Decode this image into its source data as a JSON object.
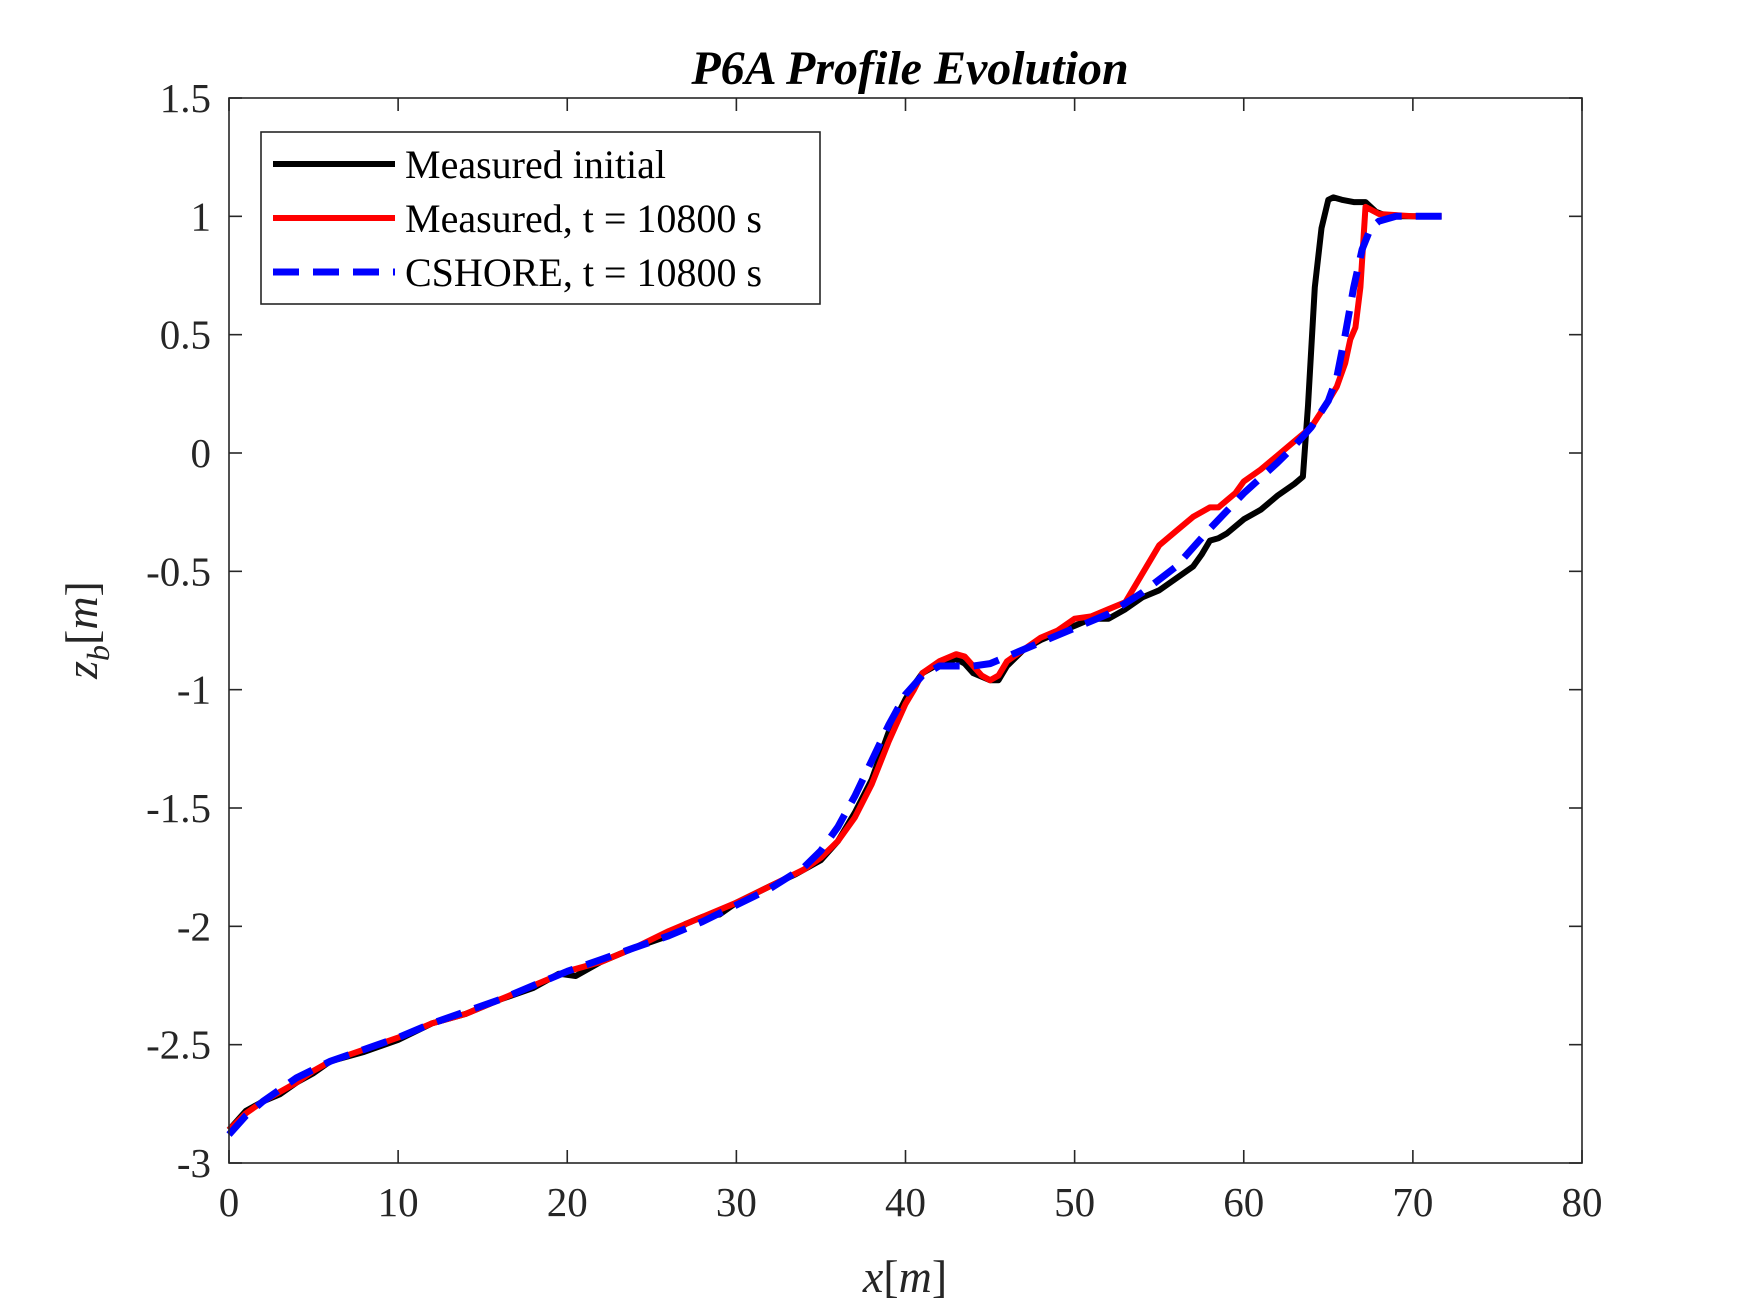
{
  "chart_data": {
    "type": "line",
    "title": "P6A Profile Evolution",
    "xlabel": "x[m]",
    "ylabel": "z_b[m]",
    "xlim": [
      0,
      80
    ],
    "ylim": [
      -3,
      1.5
    ],
    "xticks": [
      0,
      10,
      20,
      30,
      40,
      50,
      60,
      70,
      80
    ],
    "yticks": [
      -3,
      -2.5,
      -2,
      -1.5,
      -1,
      -0.5,
      0,
      0.5,
      1,
      1.5
    ],
    "xtick_labels": [
      "0",
      "10",
      "20",
      "30",
      "40",
      "50",
      "60",
      "70",
      "80"
    ],
    "ytick_labels": [
      "-3",
      "-2.5",
      "-2",
      "-1.5",
      "-1",
      "-0.5",
      "0",
      "0.5",
      "1",
      "1.5"
    ],
    "grid": false,
    "legend_position": "top-left",
    "series": [
      {
        "name": "Measured initial",
        "color": "#000000",
        "style": "solid",
        "x": [
          0,
          1,
          2,
          3,
          4,
          5,
          6,
          8,
          10,
          12,
          14,
          16,
          18,
          19.5,
          20.5,
          22,
          24,
          26,
          27,
          28,
          29,
          30,
          32,
          33.5,
          35,
          36,
          37,
          38,
          39,
          40,
          40.5,
          41,
          42,
          43,
          43.5,
          44,
          45,
          45.5,
          46,
          47,
          48,
          49,
          50,
          51,
          52,
          53,
          54,
          55,
          56,
          57,
          57.5,
          58,
          58.5,
          59,
          60,
          61,
          62,
          63,
          63.5,
          63.8,
          64.2,
          64.6,
          65,
          65.3,
          65.8,
          66.5,
          67.2,
          67.8,
          68.5,
          70,
          71.7
        ],
        "y": [
          -2.86,
          -2.78,
          -2.74,
          -2.71,
          -2.66,
          -2.62,
          -2.57,
          -2.53,
          -2.48,
          -2.41,
          -2.37,
          -2.31,
          -2.26,
          -2.2,
          -2.21,
          -2.15,
          -2.09,
          -2.04,
          -1.99,
          -1.96,
          -1.95,
          -1.9,
          -1.83,
          -1.78,
          -1.72,
          -1.64,
          -1.52,
          -1.38,
          -1.18,
          -1.04,
          -0.98,
          -0.93,
          -0.89,
          -0.87,
          -0.89,
          -0.93,
          -0.96,
          -0.96,
          -0.9,
          -0.83,
          -0.79,
          -0.76,
          -0.73,
          -0.7,
          -0.7,
          -0.66,
          -0.61,
          -0.58,
          -0.53,
          -0.48,
          -0.43,
          -0.37,
          -0.36,
          -0.34,
          -0.28,
          -0.24,
          -0.18,
          -0.13,
          -0.1,
          0.2,
          0.7,
          0.95,
          1.07,
          1.08,
          1.07,
          1.06,
          1.06,
          1.02,
          1.0,
          1.0,
          1.0
        ]
      },
      {
        "name": "Measured, t = 10800 s",
        "color": "#ff0000",
        "style": "solid",
        "x": [
          0,
          1,
          2,
          3,
          4,
          5,
          6,
          8,
          10,
          12,
          14,
          16,
          18,
          20,
          22,
          24,
          26,
          28,
          30,
          32,
          34,
          35,
          36,
          37,
          38,
          39,
          40,
          40.5,
          41,
          42,
          43,
          43.5,
          44,
          44.5,
          45,
          45.5,
          46,
          47,
          48,
          49,
          50,
          51,
          52,
          53,
          54,
          55,
          56,
          57,
          58,
          58.5,
          59,
          59.5,
          60,
          61,
          62,
          63,
          64,
          65,
          65.5,
          66,
          66.3,
          66.6,
          66.9,
          67.2,
          68,
          70,
          71.7
        ],
        "y": [
          -2.86,
          -2.79,
          -2.74,
          -2.7,
          -2.66,
          -2.61,
          -2.57,
          -2.52,
          -2.47,
          -2.41,
          -2.37,
          -2.31,
          -2.25,
          -2.19,
          -2.15,
          -2.09,
          -2.02,
          -1.96,
          -1.9,
          -1.83,
          -1.76,
          -1.71,
          -1.64,
          -1.54,
          -1.4,
          -1.22,
          -1.06,
          -1.0,
          -0.93,
          -0.88,
          -0.85,
          -0.86,
          -0.9,
          -0.94,
          -0.96,
          -0.94,
          -0.88,
          -0.83,
          -0.78,
          -0.75,
          -0.7,
          -0.69,
          -0.66,
          -0.63,
          -0.51,
          -0.39,
          -0.33,
          -0.27,
          -0.23,
          -0.23,
          -0.2,
          -0.17,
          -0.12,
          -0.07,
          -0.01,
          0.05,
          0.11,
          0.22,
          0.28,
          0.38,
          0.48,
          0.53,
          0.7,
          1.04,
          1.01,
          1.0,
          1.0
        ]
      },
      {
        "name": "CSHORE, t = 10800 s",
        "color": "#0000ff",
        "style": "dashed",
        "x": [
          0,
          1,
          2,
          4,
          6,
          8,
          10,
          12,
          14,
          16,
          18,
          20,
          22,
          24,
          26,
          28,
          30,
          32,
          34,
          35,
          36,
          37,
          38,
          39,
          40,
          41,
          42,
          43,
          44,
          45,
          46,
          48,
          50,
          52,
          54,
          56,
          58,
          60,
          62,
          63,
          64,
          65,
          65.5,
          66,
          66.5,
          67,
          67.5,
          68,
          69,
          70,
          71.7
        ],
        "y": [
          -2.88,
          -2.8,
          -2.74,
          -2.64,
          -2.57,
          -2.52,
          -2.47,
          -2.41,
          -2.36,
          -2.31,
          -2.25,
          -2.19,
          -2.14,
          -2.09,
          -2.04,
          -1.98,
          -1.91,
          -1.84,
          -1.75,
          -1.68,
          -1.58,
          -1.45,
          -1.3,
          -1.15,
          -1.02,
          -0.94,
          -0.9,
          -0.9,
          -0.9,
          -0.89,
          -0.86,
          -0.8,
          -0.74,
          -0.68,
          -0.59,
          -0.48,
          -0.32,
          -0.17,
          -0.04,
          0.03,
          0.11,
          0.22,
          0.32,
          0.5,
          0.7,
          0.86,
          0.95,
          0.98,
          1.0,
          1.0,
          1.0
        ]
      }
    ]
  }
}
